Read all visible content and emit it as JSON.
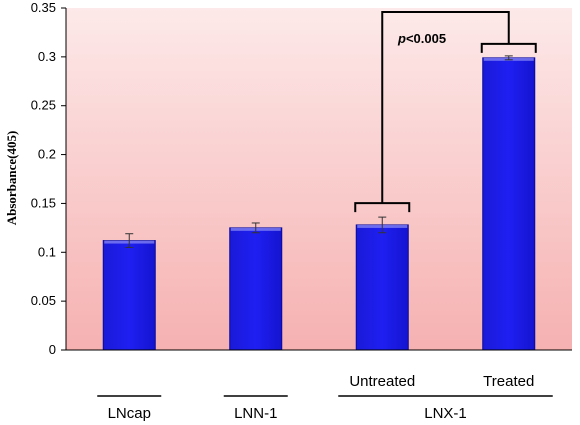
{
  "chart_data": {
    "type": "bar",
    "title": "",
    "xlabel": "",
    "ylabel": "Absorbance(405)",
    "ylim": [
      0,
      0.35
    ],
    "yticks": [
      "0",
      "0.05",
      "0.1",
      "0.15",
      "0.2",
      "0.25",
      "0.3",
      "0.35"
    ],
    "categories": [
      "LNcap",
      "LNN-1",
      "Untreated",
      "Treated"
    ],
    "values": [
      0.112,
      0.125,
      0.128,
      0.299
    ],
    "errors": [
      0.007,
      0.005,
      0.008,
      0.002
    ],
    "group_labels": [
      {
        "label": "LNcap",
        "bars": [
          0
        ]
      },
      {
        "label": "LNN-1",
        "bars": [
          1
        ]
      },
      {
        "label": "LNX-1",
        "bars": [
          2,
          3
        ]
      }
    ],
    "annotation": {
      "p_italic": "p",
      "p_rest": "<0.005",
      "between": [
        2,
        3
      ]
    },
    "colors": {
      "bar": "#1010e8",
      "bar_edge": "#0a0a9a",
      "bg_top": "#fde8e8",
      "bg_bottom": "#f7b3b3"
    },
    "grid": false
  }
}
